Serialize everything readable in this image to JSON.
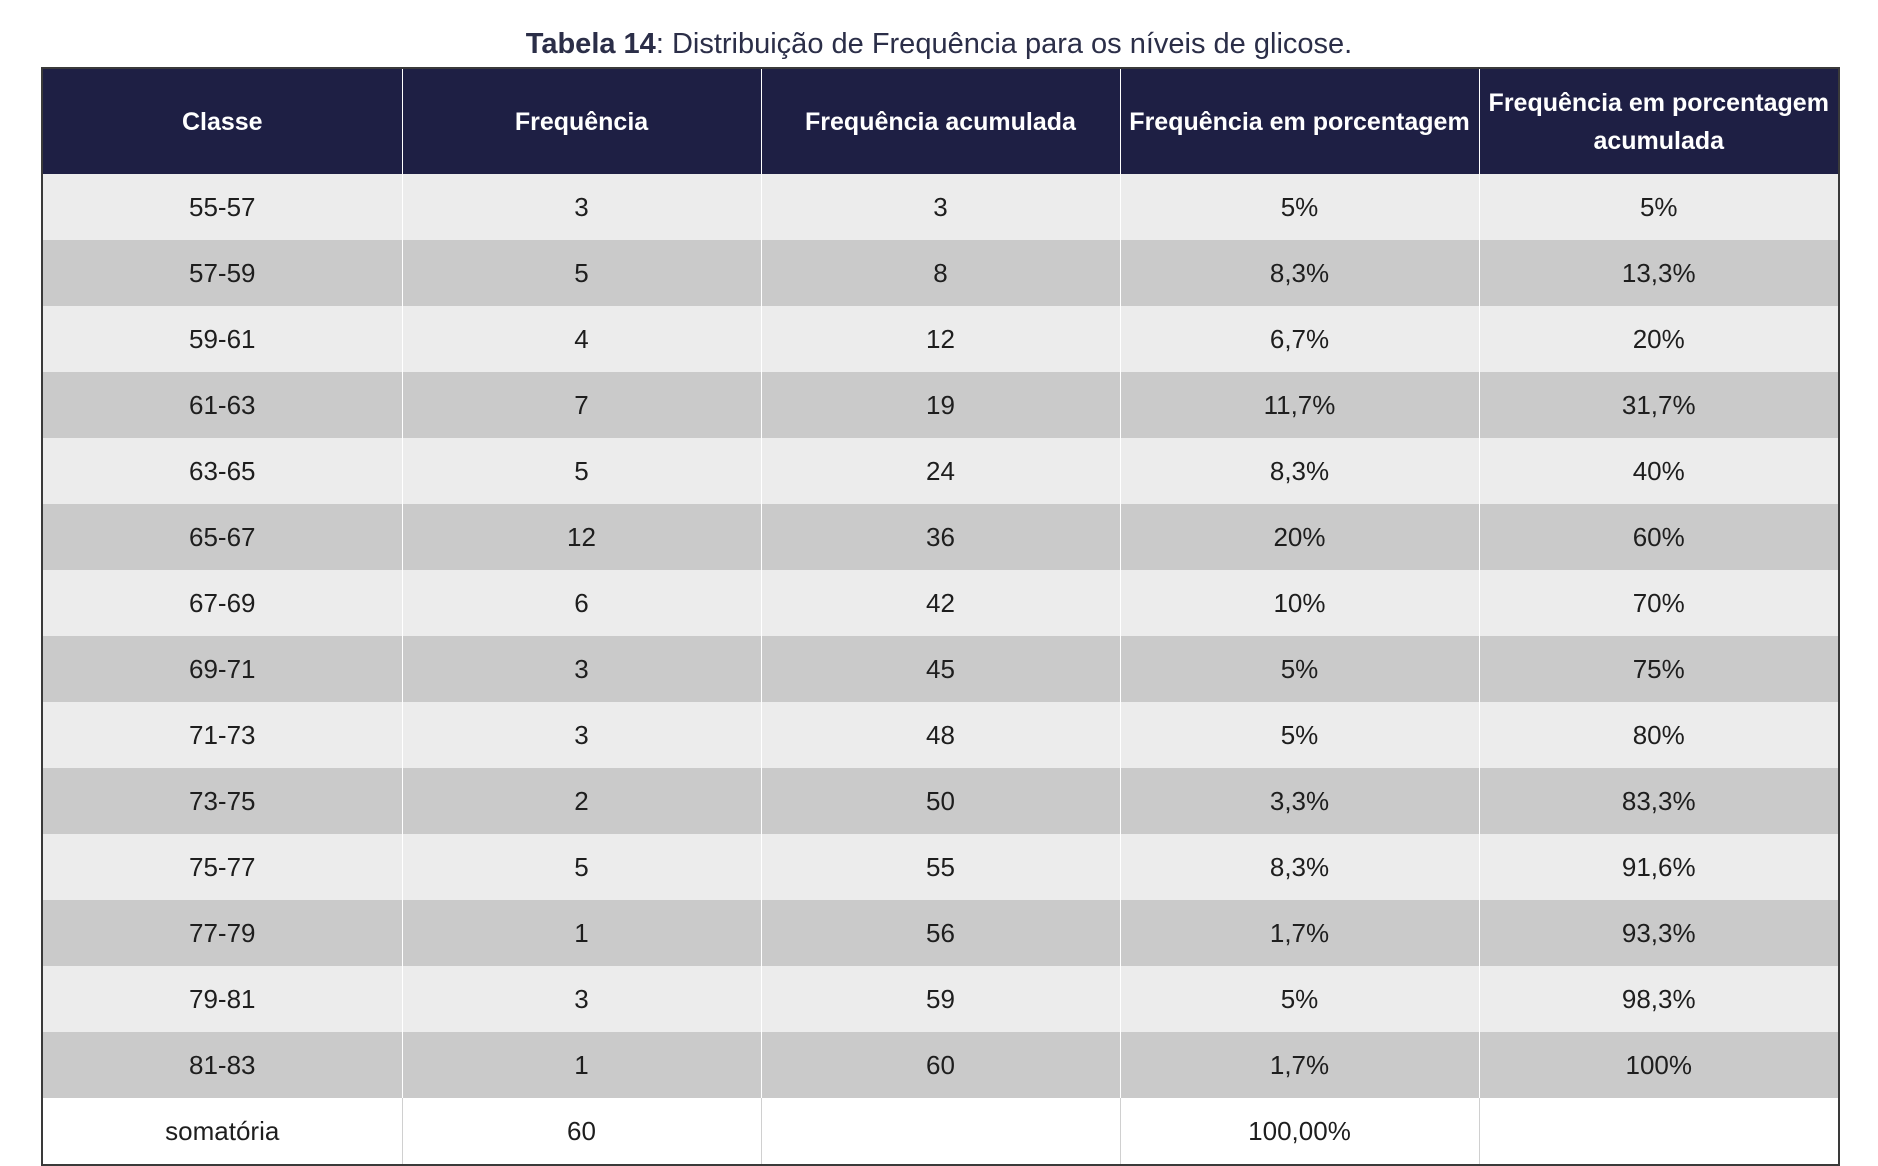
{
  "caption": {
    "label": "Tabela 14",
    "text": ": Distribuição de Frequência para os níveis de glicose."
  },
  "table": {
    "headers": [
      "Classe",
      "Frequência",
      "Frequência acumulada",
      "Frequência em porcentagem",
      "Frequência em porcentagem acumulada"
    ],
    "rows": [
      [
        "55-57",
        "3",
        "3",
        "5%",
        "5%"
      ],
      [
        "57-59",
        "5",
        "8",
        "8,3%",
        "13,3%"
      ],
      [
        "59-61",
        "4",
        "12",
        "6,7%",
        "20%"
      ],
      [
        "61-63",
        "7",
        "19",
        "11,7%",
        "31,7%"
      ],
      [
        "63-65",
        "5",
        "24",
        "8,3%",
        "40%"
      ],
      [
        "65-67",
        "12",
        "36",
        "20%",
        "60%"
      ],
      [
        "67-69",
        "6",
        "42",
        "10%",
        "70%"
      ],
      [
        "69-71",
        "3",
        "45",
        "5%",
        "75%"
      ],
      [
        "71-73",
        "3",
        "48",
        "5%",
        "80%"
      ],
      [
        "73-75",
        "2",
        "50",
        "3,3%",
        "83,3%"
      ],
      [
        "75-77",
        "5",
        "55",
        "8,3%",
        "91,6%"
      ],
      [
        "77-79",
        "1",
        "56",
        "1,7%",
        "93,3%"
      ],
      [
        "79-81",
        "3",
        "59",
        "5%",
        "98,3%"
      ],
      [
        "81-83",
        "1",
        "60",
        "1,7%",
        "100%"
      ]
    ],
    "total": [
      "somatória",
      "60",
      "",
      "100,00%",
      ""
    ]
  },
  "colors": {
    "header_bg": "#1e1f44",
    "row_light": "#ececec",
    "row_dark": "#cacaca",
    "caption_text": "#2b2e48"
  }
}
